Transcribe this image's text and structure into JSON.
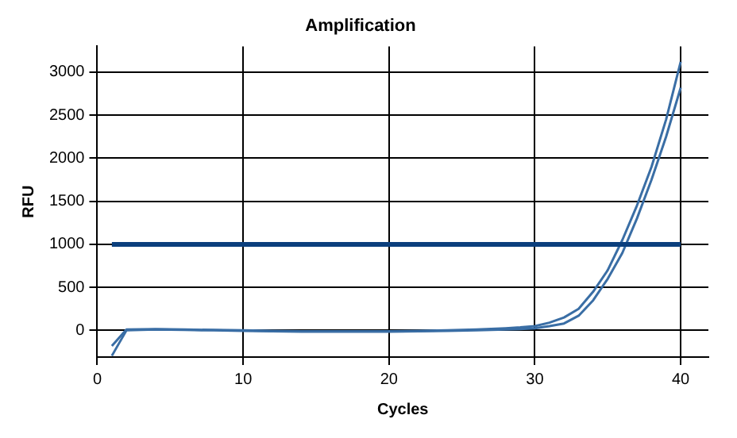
{
  "chart_data": {
    "type": "line",
    "title": "Amplification",
    "xlabel": "Cycles",
    "ylabel": "RFU",
    "xlim": [
      0,
      41.9
    ],
    "xticks": [
      0,
      10,
      20,
      30,
      40
    ],
    "ylim": [
      -310,
      3300
    ],
    "yticks": [
      0,
      500,
      1000,
      1500,
      2000,
      2500,
      3000
    ],
    "grid": true,
    "marker": "none",
    "line_style": "solid",
    "series": [
      {
        "color": "#3a6ea5",
        "x": [
          1,
          2,
          4,
          6,
          8,
          10,
          12,
          14,
          16,
          18,
          20,
          22,
          24,
          26,
          28,
          29,
          30,
          31,
          32,
          33,
          34,
          35,
          36,
          37,
          38,
          39,
          40
        ],
        "values": [
          -180,
          10,
          15,
          10,
          5,
          0,
          -5,
          -10,
          -10,
          -10,
          -10,
          -5,
          0,
          10,
          25,
          35,
          50,
          90,
          150,
          250,
          450,
          700,
          1050,
          1450,
          1900,
          2450,
          3120
        ]
      },
      {
        "color": "#3a6ea5",
        "x": [
          1,
          2,
          4,
          6,
          8,
          10,
          12,
          14,
          16,
          18,
          20,
          22,
          24,
          26,
          28,
          29,
          30,
          31,
          32,
          33,
          34,
          35,
          36,
          37,
          38,
          39,
          40
        ],
        "values": [
          -295,
          0,
          10,
          5,
          0,
          -5,
          -10,
          -15,
          -15,
          -15,
          -15,
          -10,
          -5,
          0,
          10,
          15,
          25,
          50,
          80,
          170,
          350,
          600,
          900,
          1300,
          1750,
          2250,
          2820
        ]
      }
    ],
    "ref_lines": [
      {
        "axis": "y",
        "value": 1000,
        "color": "#0b3f7d"
      }
    ]
  }
}
